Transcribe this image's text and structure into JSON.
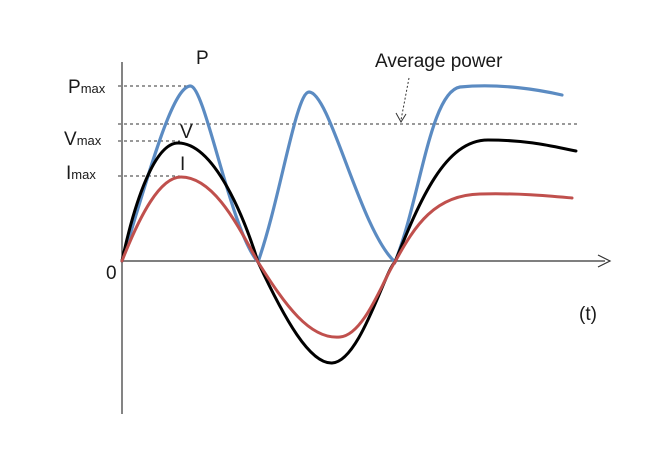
{
  "labels": {
    "p_curve": "P",
    "v_curve": "V",
    "i_curve": "I",
    "average_power": "Average power",
    "origin": "0",
    "time_axis": "(t)",
    "p_max_main": "P",
    "p_max_sub": "max",
    "v_max_main": "V",
    "v_max_sub": "max",
    "i_max_main": "I",
    "i_max_sub": "max"
  },
  "colors": {
    "power": "#5b8bc2",
    "voltage": "#000000",
    "current": "#c0504d",
    "axis": "#333333",
    "dashed": "#333333"
  }
}
